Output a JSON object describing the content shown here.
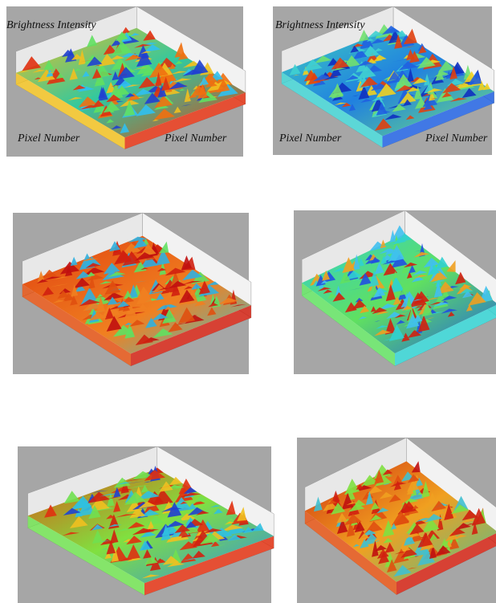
{
  "panels": [
    {
      "z_label": "Brightness Intensity",
      "x_label": "Pixel Number",
      "y_label": "Pixel Number"
    },
    {
      "z_label": "Brightness Intensity",
      "x_label": "Pixel Number",
      "y_label": "Pixel Number"
    }
  ]
}
